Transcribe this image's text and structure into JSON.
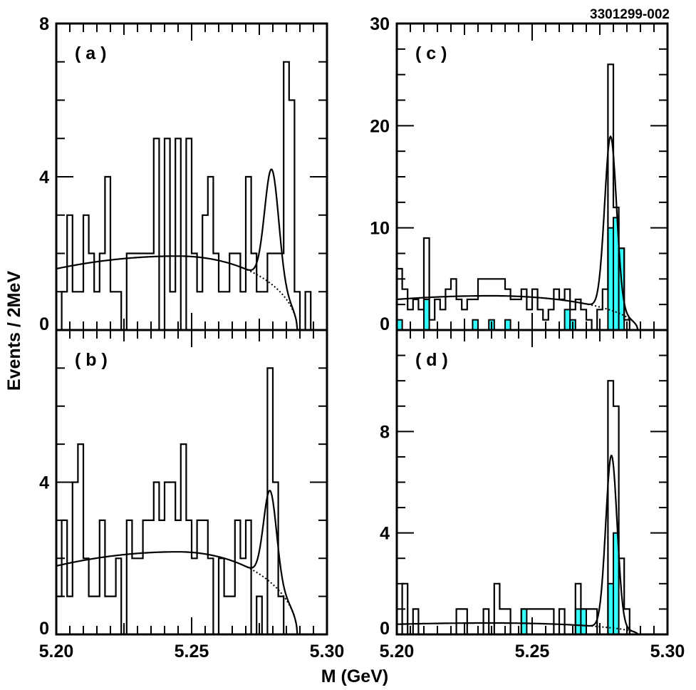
{
  "figure": {
    "id_label": "3301299-002",
    "ylabel": "Events / 2MeV",
    "xlabel": "M (GeV)",
    "x_ticks": [
      "5.20",
      "5.25",
      "5.30"
    ],
    "bin_start": 5.2,
    "bin_width": 0.002,
    "hist_color": "#000000",
    "fill_color": "#33ffff"
  },
  "chart_data": [
    {
      "type": "histogram",
      "panel": "(a)",
      "xlim": [
        5.2,
        5.3
      ],
      "ylim": [
        0,
        8
      ],
      "y_ticks": [
        "0",
        "4",
        "8"
      ],
      "hist": [
        0,
        1,
        3,
        1,
        1,
        3,
        2,
        1,
        2,
        4,
        1,
        1,
        0,
        2,
        2,
        2,
        2,
        2,
        5,
        0,
        5,
        1,
        5,
        0,
        5,
        2,
        1,
        3,
        4,
        2,
        1,
        1,
        2,
        2,
        1,
        4,
        2,
        1,
        1,
        2,
        2,
        2,
        7,
        6,
        1,
        0,
        1,
        0,
        0,
        0
      ],
      "fit_background": {
        "a": 1.6,
        "b": 1.93,
        "x0": 5.245,
        "edge": 5.289
      },
      "fit_peak": {
        "mean": 5.2796,
        "sigma": 0.0026,
        "amp": 3.0
      }
    },
    {
      "type": "histogram",
      "panel": "(c)",
      "xlim": [
        5.2,
        5.3
      ],
      "ylim": [
        0,
        30
      ],
      "y_ticks": [
        "0",
        "10",
        "20",
        "30"
      ],
      "hist": [
        6,
        4,
        2,
        3,
        2,
        9,
        1,
        3,
        2,
        4,
        5,
        3,
        2,
        3,
        3,
        5,
        5,
        5,
        5,
        5,
        4,
        3,
        3,
        4,
        2,
        4,
        2,
        1,
        2,
        4,
        3,
        4,
        2,
        3,
        2,
        1,
        0,
        2,
        4,
        26,
        12,
        8,
        1,
        0,
        0,
        0,
        0,
        0,
        0,
        0
      ],
      "hist_subset": [
        1,
        0,
        0,
        0,
        0,
        3,
        0,
        0,
        0,
        0,
        0,
        0,
        0,
        0,
        1,
        0,
        0,
        1,
        0,
        0,
        1,
        0,
        0,
        0,
        0,
        0,
        0,
        0,
        0,
        0,
        0,
        2,
        1,
        0,
        0,
        0,
        0,
        0,
        0,
        10,
        11,
        8,
        0,
        0,
        0,
        0,
        0,
        0,
        0,
        0
      ],
      "fit_background": {
        "a": 3.0,
        "b": 3.35,
        "x0": 5.235,
        "edge": 5.289
      },
      "fit_peak": {
        "mean": 5.279,
        "sigma": 0.0022,
        "amp": 17.0
      }
    },
    {
      "type": "histogram",
      "panel": "(b)",
      "xlim": [
        5.2,
        5.3
      ],
      "ylim": [
        0,
        8
      ],
      "y_ticks": [
        "0",
        "4"
      ],
      "hist": [
        1,
        3,
        1,
        4,
        5,
        2,
        1,
        1,
        3,
        1,
        1,
        2,
        0,
        3,
        2,
        2,
        3,
        3,
        4,
        3,
        4,
        4,
        3,
        5,
        3,
        2,
        3,
        3,
        2,
        0,
        2,
        1,
        1,
        3,
        2,
        3,
        0,
        1,
        0,
        7,
        4,
        1,
        0,
        0,
        0,
        0,
        0,
        0,
        0,
        0
      ],
      "fit_background": {
        "a": 1.8,
        "b": 2.17,
        "x0": 5.245,
        "edge": 5.289
      },
      "fit_peak": {
        "mean": 5.279,
        "sigma": 0.0024,
        "amp": 2.4
      }
    },
    {
      "type": "histogram",
      "panel": "(d)",
      "xlim": [
        5.2,
        5.3
      ],
      "ylim": [
        0,
        12
      ],
      "y_ticks": [
        "0",
        "4",
        "8"
      ],
      "hist": [
        0,
        2,
        0,
        1,
        0,
        0,
        0,
        0,
        0,
        0,
        0,
        1,
        1,
        0,
        0,
        0,
        1,
        0,
        2,
        1,
        1,
        0,
        0,
        1,
        1,
        1,
        1,
        1,
        1,
        0,
        1,
        0,
        0,
        2,
        1,
        1,
        1,
        0,
        0,
        10,
        9,
        3,
        1,
        0,
        0,
        0,
        0,
        0,
        0,
        0
      ],
      "hist_subset": [
        0,
        0,
        0,
        0,
        0,
        0,
        0,
        0,
        0,
        0,
        0,
        0,
        0,
        0,
        0,
        0,
        0,
        0,
        0,
        0,
        0,
        0,
        0,
        1,
        0,
        0,
        0,
        0,
        0,
        0,
        0,
        0,
        0,
        1,
        1,
        0,
        0,
        0,
        0,
        2,
        4,
        0,
        0,
        0,
        0,
        0,
        0,
        0,
        0,
        0
      ],
      "fit_background": {
        "a": 0.4,
        "b": 0.45,
        "x0": 5.235,
        "edge": 5.289
      },
      "fit_peak": {
        "mean": 5.2793,
        "sigma": 0.0021,
        "amp": 6.8
      }
    }
  ]
}
